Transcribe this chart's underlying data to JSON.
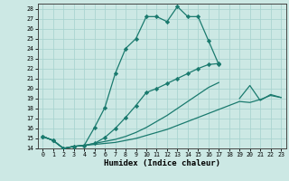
{
  "title": "",
  "xlabel": "Humidex (Indice chaleur)",
  "bg_color": "#cce8e4",
  "grid_color": "#aad4d0",
  "line_color": "#1a7a6e",
  "xlim": [
    -0.5,
    23.5
  ],
  "ylim": [
    14,
    28.5
  ],
  "xticks": [
    0,
    1,
    2,
    3,
    4,
    5,
    6,
    7,
    8,
    9,
    10,
    11,
    12,
    13,
    14,
    15,
    16,
    17,
    18,
    19,
    20,
    21,
    22,
    23
  ],
  "yticks": [
    14,
    15,
    16,
    17,
    18,
    19,
    20,
    21,
    22,
    23,
    24,
    25,
    26,
    27,
    28
  ],
  "line1_x": [
    0,
    1,
    2,
    3,
    4,
    5,
    6,
    7,
    8,
    9,
    10,
    11,
    12,
    13,
    14,
    15,
    16,
    17,
    18
  ],
  "line1_y": [
    15.2,
    14.8,
    14.0,
    14.2,
    14.3,
    16.1,
    18.1,
    21.5,
    24.0,
    25.0,
    27.2,
    27.2,
    26.7,
    28.2,
    27.2,
    27.2,
    24.8,
    22.4,
    null
  ],
  "line2_x": [
    0,
    1,
    2,
    3,
    4,
    5,
    6,
    7,
    8,
    9,
    10,
    11,
    12,
    13,
    14,
    15,
    16,
    17,
    18,
    19,
    20,
    21,
    22,
    23
  ],
  "line2_y": [
    15.2,
    14.8,
    14.0,
    14.2,
    14.3,
    14.5,
    15.1,
    16.0,
    17.1,
    18.3,
    19.6,
    20.0,
    20.5,
    21.0,
    21.5,
    22.0,
    22.4,
    22.5,
    null,
    null,
    null,
    null,
    null,
    null
  ],
  "line3_x": [
    0,
    1,
    2,
    3,
    4,
    5,
    6,
    7,
    8,
    9,
    10,
    11,
    12,
    13,
    14,
    15,
    16,
    17,
    18,
    19,
    20,
    21,
    22,
    23
  ],
  "line3_y": [
    15.2,
    14.8,
    14.0,
    14.2,
    14.3,
    14.5,
    14.7,
    14.9,
    15.2,
    15.6,
    16.1,
    16.7,
    17.3,
    18.0,
    18.7,
    19.4,
    20.1,
    20.6,
    null,
    19.0,
    20.3,
    18.8,
    19.4,
    19.1
  ],
  "line4_x": [
    0,
    1,
    2,
    3,
    4,
    5,
    6,
    7,
    8,
    9,
    10,
    11,
    12,
    13,
    14,
    15,
    16,
    17,
    18,
    19,
    20,
    21,
    22,
    23
  ],
  "line4_y": [
    15.2,
    14.8,
    14.0,
    14.2,
    14.3,
    14.4,
    14.5,
    14.6,
    14.8,
    15.0,
    15.3,
    15.6,
    15.9,
    16.3,
    16.7,
    17.1,
    17.5,
    17.9,
    18.3,
    18.7,
    18.6,
    18.9,
    19.3,
    19.1
  ]
}
